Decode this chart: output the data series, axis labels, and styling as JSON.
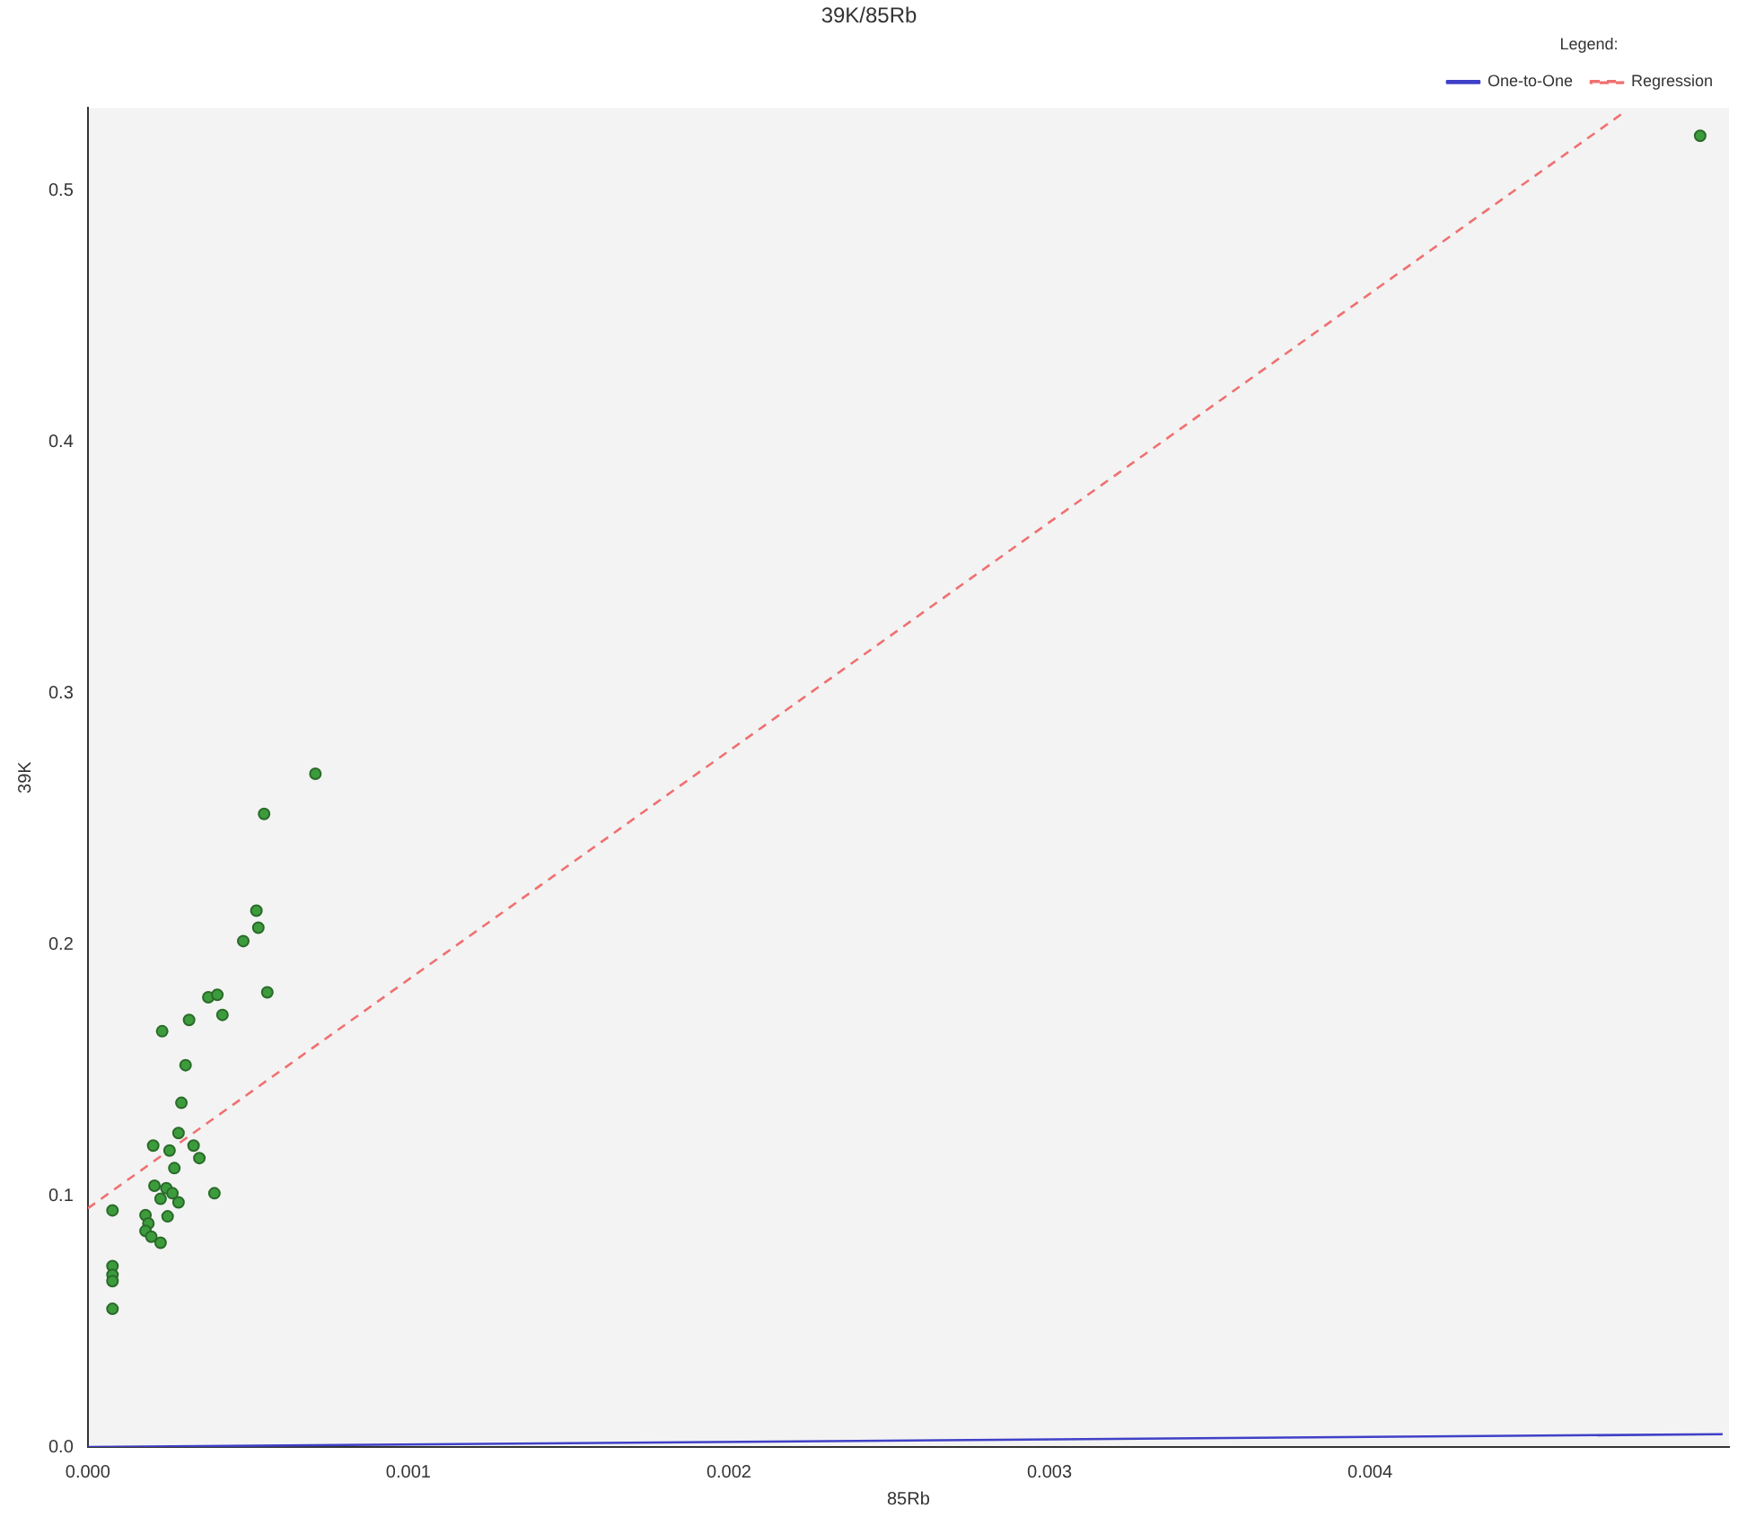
{
  "chart_data": {
    "type": "scatter",
    "title": "39K/85Rb",
    "xlabel": "85Rb",
    "ylabel": "39K",
    "legend_title": "Legend:",
    "legend": "top right",
    "grid": false,
    "marker": "circle",
    "xlim": [
      0,
      0.00512
    ],
    "ylim": [
      0,
      0.533
    ],
    "xticks": [
      {
        "value": 0,
        "label": "0.000"
      },
      {
        "value": 0.001,
        "label": "0.001"
      },
      {
        "value": 0.002,
        "label": "0.002"
      },
      {
        "value": 0.003,
        "label": "0.003"
      },
      {
        "value": 0.004,
        "label": "0.004"
      }
    ],
    "yticks": [
      {
        "value": 0,
        "label": "0.0"
      },
      {
        "value": 0.1,
        "label": "0.1"
      },
      {
        "value": 0.2,
        "label": "0.2"
      },
      {
        "value": 0.3,
        "label": "0.3"
      },
      {
        "value": 0.4,
        "label": "0.4"
      },
      {
        "value": 0.5,
        "label": "0.5"
      }
    ],
    "series": [
      {
        "type": "scatter",
        "color": "#3c9c3c",
        "x": [
          0.00071,
          0.00055,
          0.000526,
          0.000532,
          0.000485,
          0.00056,
          0.000376,
          0.000404,
          0.00042,
          0.000316,
          0.000232,
          0.000305,
          0.000292,
          0.000283,
          0.000204,
          0.000255,
          0.00033,
          0.000348,
          0.00027,
          0.000208,
          0.000245,
          0.000264,
          0.000227,
          0.000283,
          0.000395,
          7.7e-05,
          0.00018,
          0.000189,
          0.000249,
          0.00018,
          0.000198,
          0.000227,
          7.7e-05,
          7.7e-05,
          7.7e-05,
          7.7e-05,
          0.00503
        ],
        "values": [
          0.268,
          0.252,
          0.2135,
          0.2067,
          0.2014,
          0.181,
          0.179,
          0.18,
          0.172,
          0.17,
          0.1655,
          0.152,
          0.137,
          0.125,
          0.12,
          0.118,
          0.12,
          0.115,
          0.111,
          0.104,
          0.103,
          0.101,
          0.0988,
          0.0974,
          0.101,
          0.0942,
          0.0923,
          0.089,
          0.0918,
          0.086,
          0.0837,
          0.0813,
          0.072,
          0.0685,
          0.066,
          0.055,
          0.522
        ]
      },
      {
        "type": "line",
        "name": "One-to-One",
        "color": "#4040c8",
        "marker": "none",
        "line_style": "solid",
        "x": [
          0,
          0.0051
        ],
        "values": [
          0,
          0.0051
        ]
      },
      {
        "type": "line",
        "name": "Regression",
        "color": "#f07070",
        "marker": "none",
        "line_style": "dashed",
        "x": [
          0,
          0.0048
        ],
        "values": [
          0.095,
          0.532
        ]
      }
    ]
  }
}
